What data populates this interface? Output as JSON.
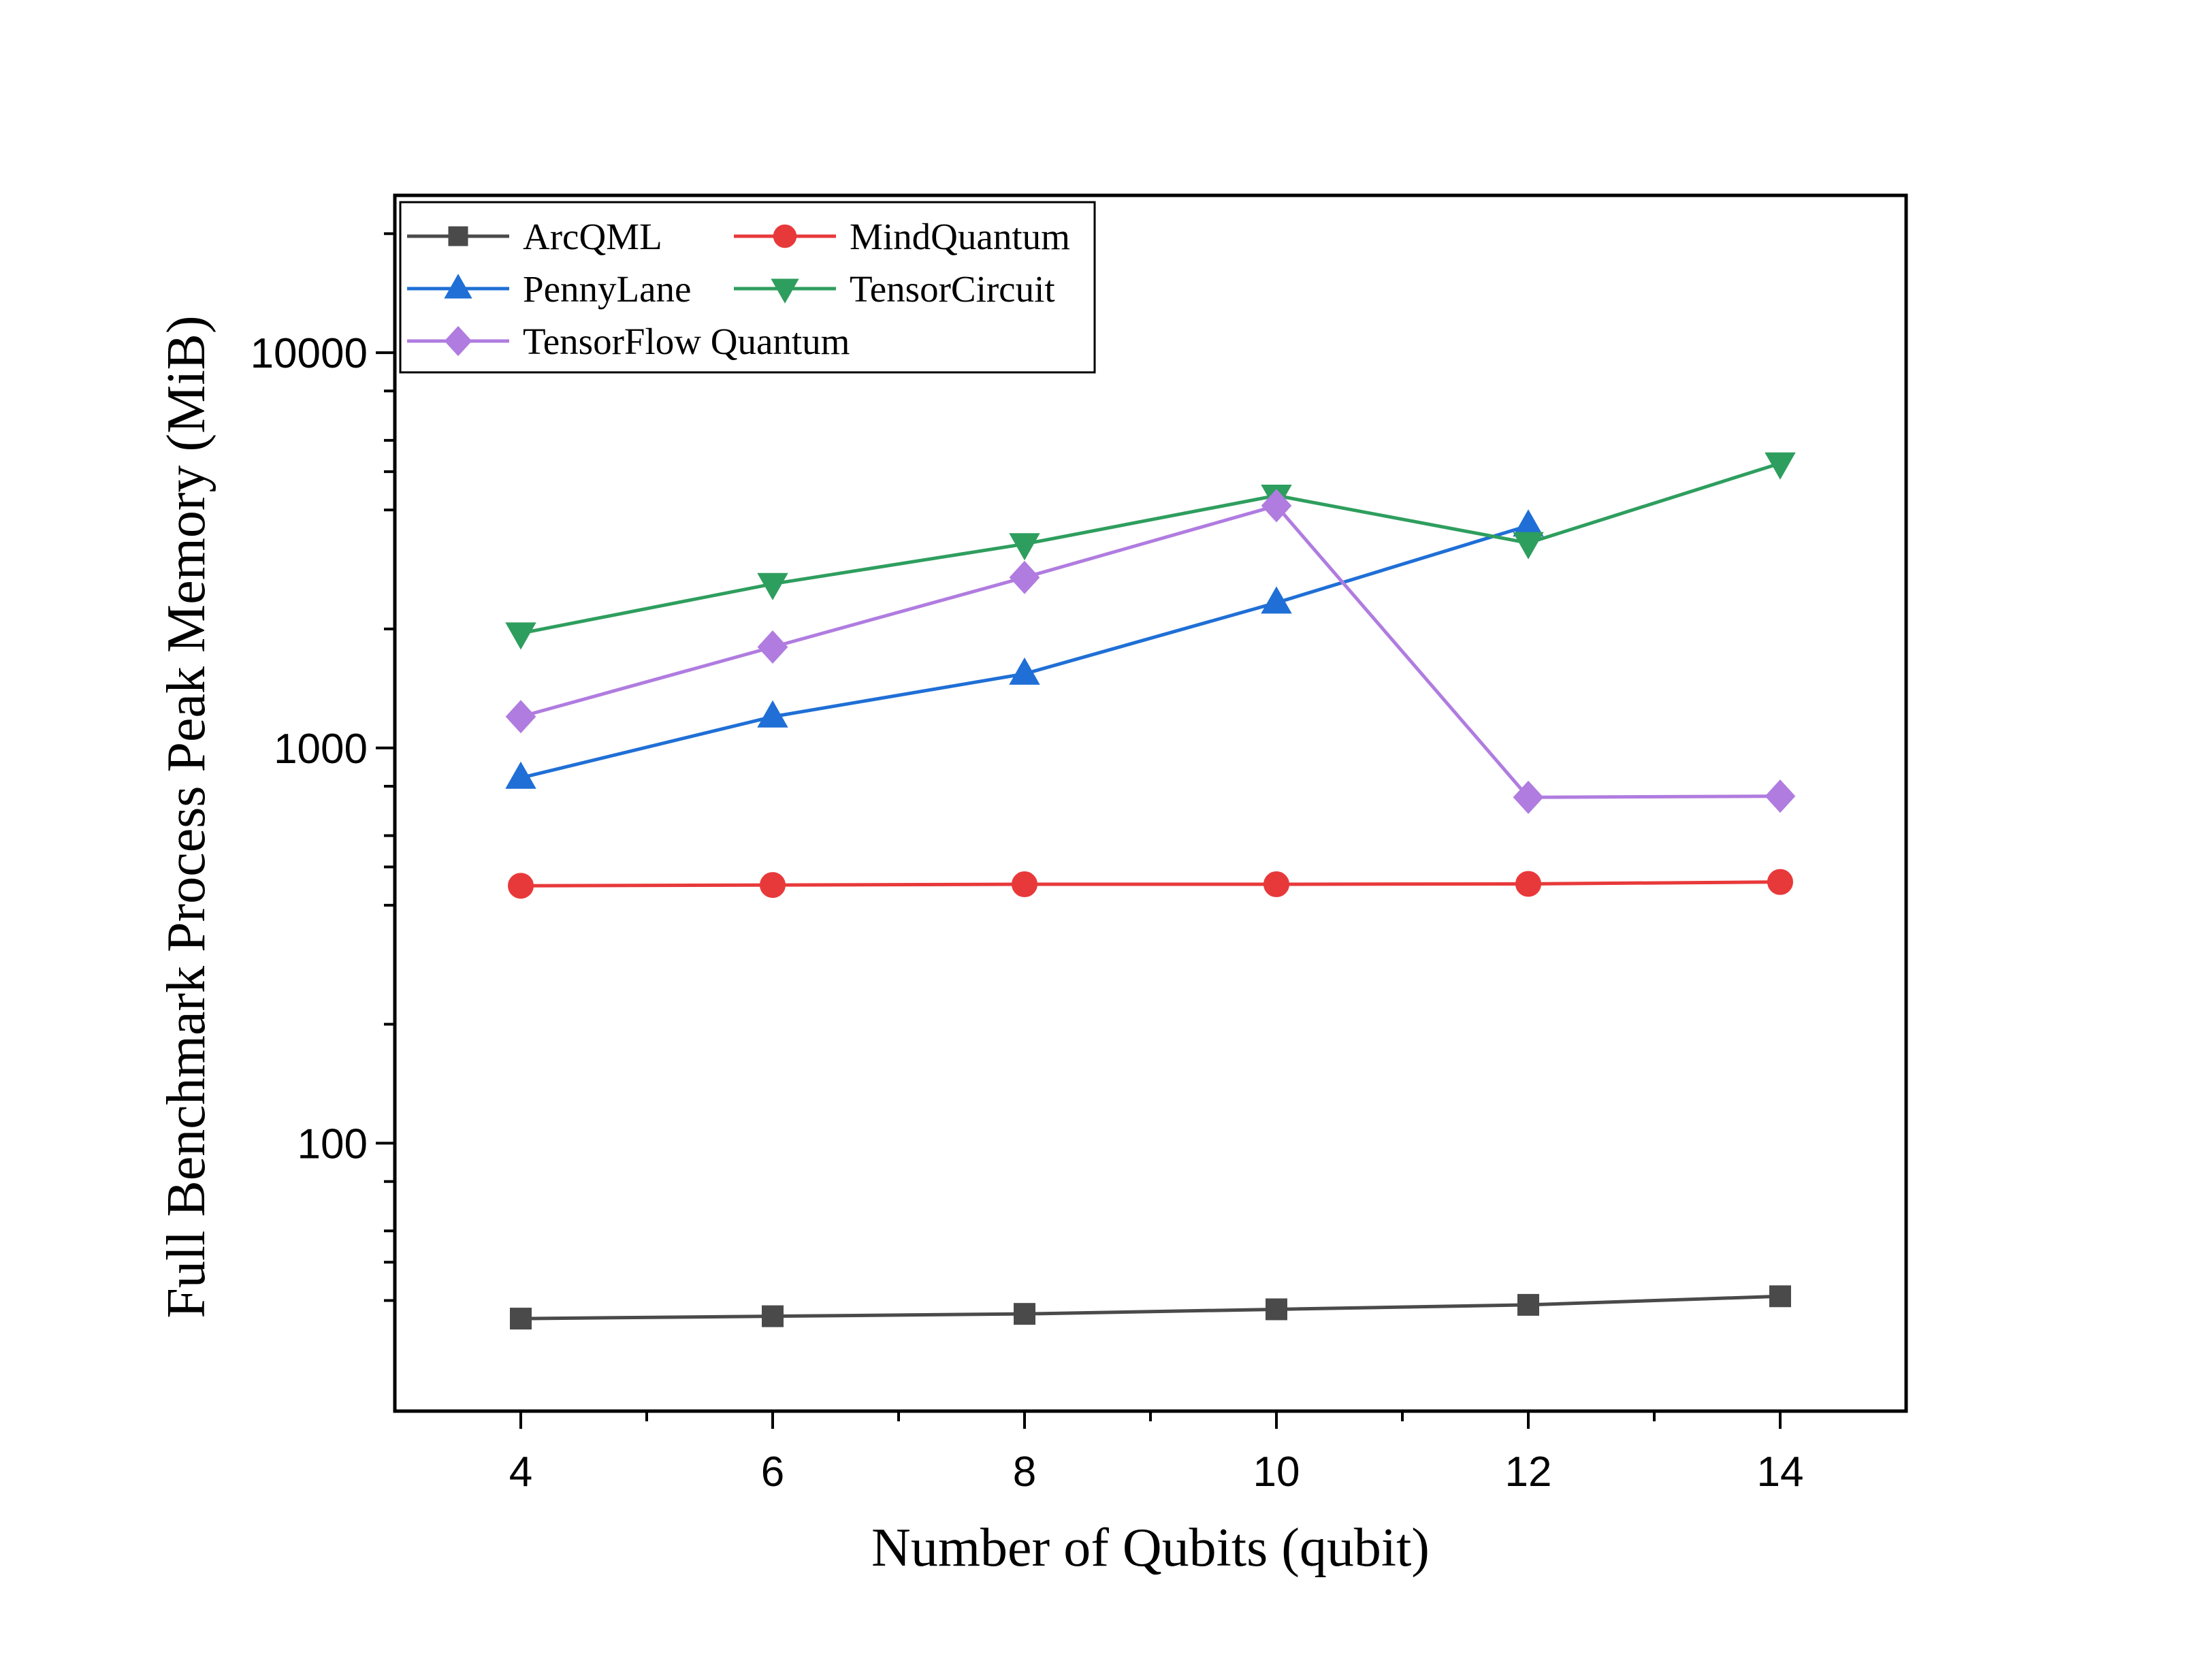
{
  "chart_data": {
    "type": "line",
    "title": "",
    "xlabel": "Number of Qubits (qubit)",
    "ylabel": "Full Benchmark Process Peak Memory (MiB)",
    "x": [
      4,
      6,
      8,
      10,
      12,
      14
    ],
    "x_ticks": [
      4,
      6,
      8,
      10,
      12,
      14
    ],
    "xlim": [
      3,
      15
    ],
    "y_scale": "log",
    "ylim": [
      21,
      25000
    ],
    "y_ticks": [
      100,
      1000,
      10000
    ],
    "y_tick_labels": [
      "100",
      "1000",
      "10000"
    ],
    "grid": false,
    "legend_position": "top-left",
    "series": [
      {
        "name": "ArcQML",
        "color": "#4a4a4a",
        "marker": "square",
        "values": [
          36,
          36.5,
          37,
          38,
          39,
          41
        ]
      },
      {
        "name": "MindQuantum",
        "color": "#e8393a",
        "marker": "circle",
        "values": [
          448,
          450,
          452,
          452,
          453,
          458
        ]
      },
      {
        "name": "PennyLane",
        "color": "#1f6fd6",
        "marker": "triangle-up",
        "values": [
          840,
          1200,
          1540,
          2330,
          3650,
          null
        ]
      },
      {
        "name": "TensorCircuit",
        "color": "#2e9e5e",
        "marker": "triangle-down",
        "values": [
          1950,
          2600,
          3280,
          4350,
          3300,
          5250
        ]
      },
      {
        "name": "TensorFlow Quantum",
        "color": "#b07ce0",
        "marker": "diamond",
        "values": [
          1200,
          1800,
          2700,
          4100,
          750,
          755
        ]
      }
    ]
  }
}
